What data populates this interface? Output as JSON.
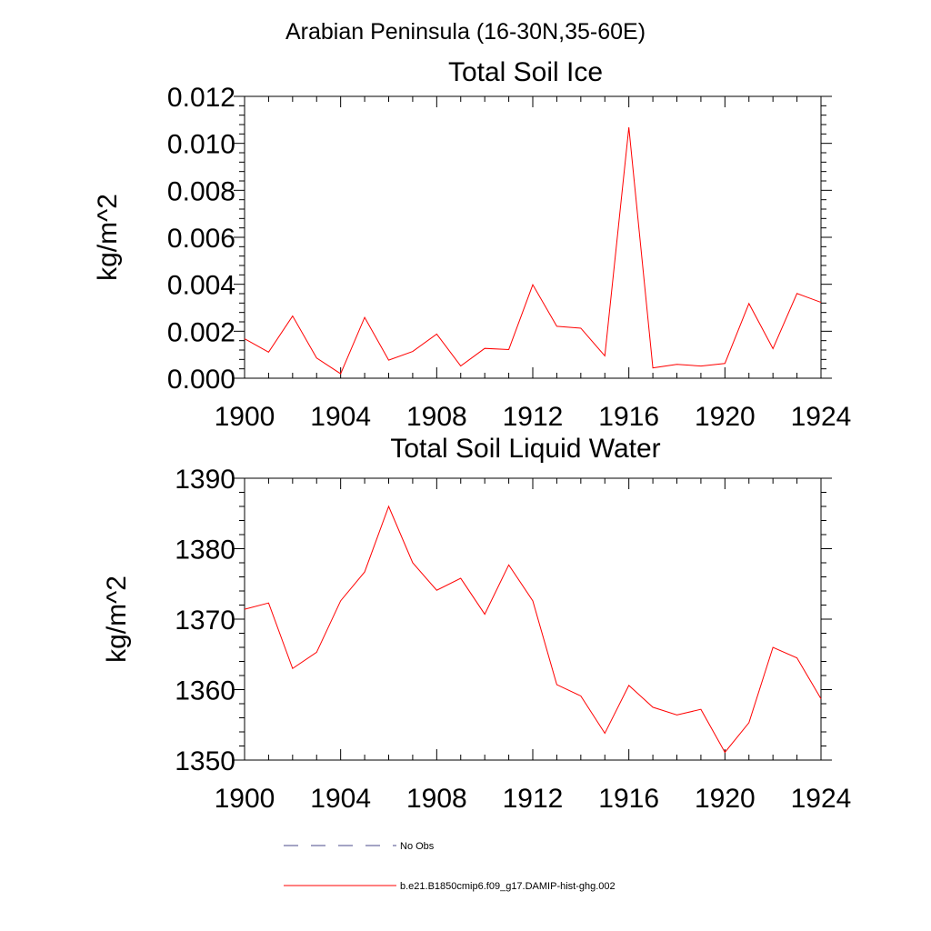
{
  "suptitle": "Arabian Peninsula (16-30N,35-60E)",
  "colors": {
    "model": "#ff0000",
    "obs": "#4a4a8a",
    "axis": "#000000"
  },
  "chart_data": [
    {
      "type": "line",
      "title": "Total Soil Ice",
      "xlabel": "",
      "ylabel": "kg/m^2",
      "xlim": [
        1900,
        1924
      ],
      "ylim": [
        0.0,
        0.012
      ],
      "xticks": [
        1900,
        1904,
        1908,
        1912,
        1916,
        1920,
        1924
      ],
      "xtick_labels": [
        "1900",
        "1904",
        "1908",
        "1912",
        "1916",
        "1920",
        "1924"
      ],
      "yticks": [
        0.0,
        0.002,
        0.004,
        0.006,
        0.008,
        0.01,
        0.012
      ],
      "ytick_labels": [
        "0.000",
        "0.002",
        "0.004",
        "0.006",
        "0.008",
        "0.010",
        "0.012"
      ],
      "grid": false,
      "series": [
        {
          "name": "b.e21.B1850cmip6.f09_g17.DAMIP-hist-ghg.002",
          "color": "#ff0000",
          "x": [
            1900,
            1901,
            1902,
            1903,
            1904,
            1905,
            1906,
            1907,
            1908,
            1909,
            1910,
            1911,
            1912,
            1913,
            1914,
            1915,
            1916,
            1917,
            1918,
            1919,
            1920,
            1921,
            1922,
            1923,
            1924
          ],
          "y": [
            0.00168,
            0.00111,
            0.00265,
            0.00086,
            0.00019,
            0.00259,
            0.00077,
            0.00114,
            0.00188,
            0.00052,
            0.00127,
            0.00122,
            0.00398,
            0.00221,
            0.00213,
            0.00095,
            0.01068,
            0.00044,
            0.00059,
            0.00052,
            0.00063,
            0.00318,
            0.00126,
            0.00361,
            0.00323
          ]
        }
      ]
    },
    {
      "type": "line",
      "title": "Total Soil Liquid Water",
      "xlabel": "",
      "ylabel": "kg/m^2",
      "xlim": [
        1900,
        1924
      ],
      "ylim": [
        1350,
        1390
      ],
      "xticks": [
        1900,
        1904,
        1908,
        1912,
        1916,
        1920,
        1924
      ],
      "xtick_labels": [
        "1900",
        "1904",
        "1908",
        "1912",
        "1916",
        "1920",
        "1924"
      ],
      "yticks": [
        1350,
        1360,
        1370,
        1380,
        1390
      ],
      "ytick_labels": [
        "1350",
        "1360",
        "1370",
        "1380",
        "1390"
      ],
      "grid": false,
      "series": [
        {
          "name": "b.e21.B1850cmip6.f09_g17.DAMIP-hist-ghg.002",
          "color": "#ff0000",
          "x": [
            1900,
            1901,
            1902,
            1903,
            1904,
            1905,
            1906,
            1907,
            1908,
            1909,
            1910,
            1911,
            1912,
            1913,
            1914,
            1915,
            1916,
            1917,
            1918,
            1919,
            1920,
            1921,
            1922,
            1923,
            1924
          ],
          "y": [
            1371.4,
            1372.3,
            1363.0,
            1365.3,
            1372.6,
            1376.7,
            1386.0,
            1378.0,
            1374.1,
            1375.8,
            1370.7,
            1377.7,
            1372.6,
            1360.7,
            1359.1,
            1353.8,
            1360.6,
            1357.5,
            1356.4,
            1357.2,
            1351.1,
            1355.3,
            1366.0,
            1364.5,
            1358.7
          ]
        }
      ]
    }
  ],
  "legend": {
    "placement": "bottom",
    "entries": [
      {
        "label": "No Obs",
        "style": "dashed",
        "color": "#4a4a8a"
      },
      {
        "label": "b.e21.B1850cmip6.f09_g17.DAMIP-hist-ghg.002",
        "style": "solid",
        "color": "#ff0000"
      }
    ]
  }
}
